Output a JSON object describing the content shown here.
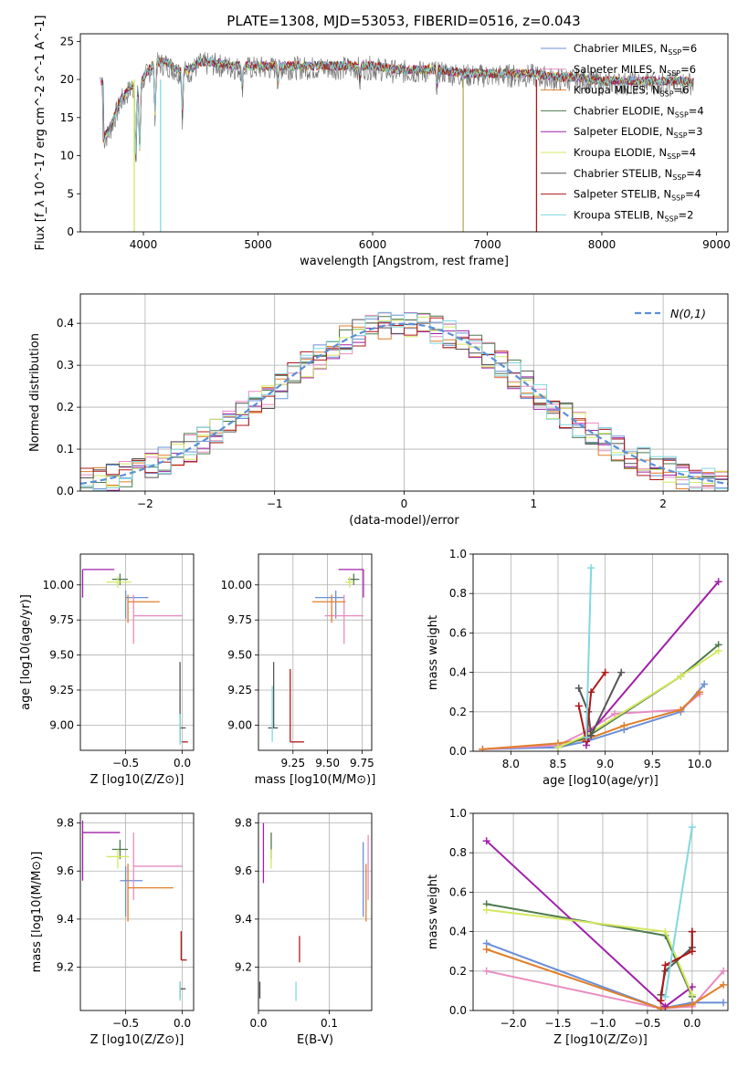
{
  "title": "PLATE=1308, MJD=53053, FIBERID=0516, z=0.043",
  "colors": {
    "Chabrier MILES": "#6a8fd8",
    "Salpeter MILES": "#e88cc0",
    "Kroupa MILES": "#e07f2a",
    "Chabrier ELODIE": "#4d7a4d",
    "Salpeter ELODIE": "#a020a8",
    "Kroupa ELODIE": "#d4e860",
    "Chabrier STELIB": "#555555",
    "Salpeter STELIB": "#b01818",
    "Kroupa STELIB": "#80d8e0"
  },
  "chart_data": [
    {
      "type": "line",
      "title": "PLATE=1308, MJD=53053, FIBERID=0516, z=0.043",
      "xlabel": "wavelength [Angstrom, rest frame]",
      "ylabel": "Flux [f_λ 10^-17 erg cm^-2 s^-1 A^-1]",
      "xlim": [
        3450,
        9100
      ],
      "ylim": [
        0,
        26
      ],
      "xticks": [
        4000,
        5000,
        6000,
        7000,
        8000,
        9000
      ],
      "yticks": [
        0,
        5,
        10,
        15,
        20,
        25
      ],
      "observed": {
        "color": "#777777",
        "x": [
          3650,
          3700,
          3750,
          3800,
          3850,
          3900,
          3950,
          4000,
          4050,
          4100,
          4200,
          4300,
          4400,
          4500,
          4600,
          4800,
          5000,
          5200,
          5400,
          5600,
          5800,
          6000,
          6200,
          6400,
          6600,
          6800,
          7000,
          7200,
          7400,
          7600,
          7800,
          8000,
          8200,
          8400,
          8600,
          8800
        ],
        "y": [
          12,
          13,
          15,
          17,
          18,
          19,
          18,
          20,
          21,
          22,
          22,
          21,
          21,
          22,
          22,
          21.5,
          21.5,
          21.5,
          21.5,
          21.5,
          21.5,
          21.5,
          21,
          21,
          21,
          20.5,
          20.5,
          20.5,
          20.5,
          20,
          20,
          19.5,
          19.5,
          19.5,
          19.5,
          19.5
        ]
      },
      "legend": [
        {
          "label": "Chabrier MILES, N",
          "sub": "SSP",
          "suffix": "=6"
        },
        {
          "label": "Salpeter MILES, N",
          "sub": "SSP",
          "suffix": "=6"
        },
        {
          "label": "Kroupa MILES, N",
          "sub": "SSP",
          "suffix": "=6"
        },
        {
          "label": "Chabrier ELODIE, N",
          "sub": "SSP",
          "suffix": "=4"
        },
        {
          "label": "Salpeter ELODIE, N",
          "sub": "SSP",
          "suffix": "=3"
        },
        {
          "label": "Kroupa ELODIE, N",
          "sub": "SSP",
          "suffix": "=4"
        },
        {
          "label": "Chabrier STELIB, N",
          "sub": "SSP",
          "suffix": "=4"
        },
        {
          "label": "Salpeter STELIB, N",
          "sub": "SSP",
          "suffix": "=4"
        },
        {
          "label": "Kroupa STELIB, N",
          "sub": "SSP",
          "suffix": "=2"
        }
      ],
      "legend_position": "upper right"
    },
    {
      "type": "histogram",
      "xlabel": "(data-model)/error",
      "ylabel": "Normed distribution",
      "xlim": [
        -2.5,
        2.5
      ],
      "ylim": [
        0,
        0.47
      ],
      "xticks": [
        -2,
        -1,
        0,
        1,
        2
      ],
      "yticks": [
        0.0,
        0.1,
        0.2,
        0.3,
        0.4
      ],
      "bins": [
        -2.5,
        -2.4,
        -2.3,
        -2.2,
        -2.1,
        -2.0,
        -1.9,
        -1.8,
        -1.7,
        -1.6,
        -1.5,
        -1.4,
        -1.3,
        -1.2,
        -1.1,
        -1.0,
        -0.9,
        -0.8,
        -0.7,
        -0.6,
        -0.5,
        -0.4,
        -0.3,
        -0.2,
        -0.1,
        0.0,
        0.1,
        0.2,
        0.3,
        0.4,
        0.5,
        0.6,
        0.7,
        0.8,
        0.9,
        1.0,
        1.1,
        1.2,
        1.3,
        1.4,
        1.5,
        1.6,
        1.7,
        1.8,
        1.9,
        2.0,
        2.1,
        2.2,
        2.3,
        2.4,
        2.5
      ],
      "reference": {
        "label": "N(0,1)",
        "color": "#5b8fd8",
        "style": "dashed"
      },
      "legend_position": "upper right"
    },
    {
      "type": "errorbar",
      "xlabel": "Z [log10(Z/Z⊙)]",
      "ylabel": "age [log10(age/yr)]",
      "xlim": [
        -0.9,
        0.1
      ],
      "ylim": [
        8.82,
        10.22
      ],
      "xticks": [
        -0.5,
        0.0
      ],
      "yticks": [
        9.0,
        9.25,
        9.5,
        9.75,
        10.0
      ],
      "points": [
        {
          "model": "Chabrier MILES",
          "x": -0.5,
          "y": 9.91,
          "xerr": [
            0.0,
            0.2
          ],
          "yerr": [
            0.15,
            0.05
          ]
        },
        {
          "model": "Salpeter MILES",
          "x": -0.43,
          "y": 9.78,
          "xerr": [
            0.0,
            0.43
          ],
          "yerr": [
            0.2,
            0.15
          ]
        },
        {
          "model": "Kroupa MILES",
          "x": -0.48,
          "y": 9.88,
          "xerr": [
            0.0,
            0.28
          ],
          "yerr": [
            0.15,
            0.05
          ]
        },
        {
          "model": "Chabrier ELODIE",
          "x": -0.55,
          "y": 10.04,
          "xerr": [
            0.07,
            0.07
          ],
          "yerr": [
            0.04,
            0.04
          ]
        },
        {
          "model": "Salpeter ELODIE",
          "x": -0.88,
          "y": 10.11,
          "xerr": [
            0.0,
            0.28
          ],
          "yerr": [
            0.2,
            0.0
          ]
        },
        {
          "model": "Kroupa ELODIE",
          "x": -0.57,
          "y": 10.02,
          "xerr": [
            0.1,
            0.12
          ],
          "yerr": [
            0.04,
            0.04
          ]
        },
        {
          "model": "Chabrier STELIB",
          "x": -0.02,
          "y": 8.98,
          "xerr": [
            0.0,
            0.05
          ],
          "yerr": [
            0.1,
            0.47
          ]
        },
        {
          "model": "Salpeter STELIB",
          "x": -0.01,
          "y": 8.88,
          "xerr": [
            0.0,
            0.06
          ],
          "yerr": [
            0.0,
            0.0
          ]
        },
        {
          "model": "Kroupa STELIB",
          "x": -0.02,
          "y": 8.88,
          "xerr": [
            0.0,
            0.02
          ],
          "yerr": [
            0.02,
            0.2
          ]
        }
      ]
    },
    {
      "type": "errorbar",
      "xlabel": "mass [log10(M/M⊙)]",
      "ylabel": "",
      "xlim": [
        9.0,
        9.82
      ],
      "ylim": [
        8.82,
        10.22
      ],
      "xticks": [
        9.25,
        9.5,
        9.75
      ],
      "yticks": [
        9.0,
        9.25,
        9.5,
        9.75,
        10.0
      ],
      "points": [
        {
          "model": "Chabrier MILES",
          "x": 9.56,
          "y": 9.91,
          "xerr": [
            0.15,
            0.06
          ],
          "yerr": [
            0.15,
            0.05
          ]
        },
        {
          "model": "Salpeter MILES",
          "x": 9.62,
          "y": 9.78,
          "xerr": [
            0.14,
            0.14
          ],
          "yerr": [
            0.2,
            0.15
          ]
        },
        {
          "model": "Kroupa MILES",
          "x": 9.53,
          "y": 9.88,
          "xerr": [
            0.14,
            0.1
          ],
          "yerr": [
            0.15,
            0.05
          ]
        },
        {
          "model": "Chabrier ELODIE",
          "x": 9.69,
          "y": 10.04,
          "xerr": [
            0.04,
            0.04
          ],
          "yerr": [
            0.04,
            0.04
          ]
        },
        {
          "model": "Salpeter ELODIE",
          "x": 9.76,
          "y": 10.11,
          "xerr": [
            0.18,
            0.0
          ],
          "yerr": [
            0.2,
            0.0
          ]
        },
        {
          "model": "Kroupa ELODIE",
          "x": 9.66,
          "y": 10.02,
          "xerr": [
            0.03,
            0.03
          ],
          "yerr": [
            0.04,
            0.04
          ]
        },
        {
          "model": "Chabrier STELIB",
          "x": 9.11,
          "y": 8.98,
          "xerr": [
            0.04,
            0.03
          ],
          "yerr": [
            0.0,
            0.47
          ]
        },
        {
          "model": "Salpeter STELIB",
          "x": 9.23,
          "y": 8.88,
          "xerr": [
            0.0,
            0.1
          ],
          "yerr": [
            0.0,
            0.52
          ]
        },
        {
          "model": "Kroupa STELIB",
          "x": 9.1,
          "y": 8.88,
          "xerr": [
            0.0,
            0.0
          ],
          "yerr": [
            0.0,
            0.4
          ]
        }
      ]
    },
    {
      "type": "line",
      "xlabel": "age [log10(age/yr)]",
      "ylabel": "mass weight",
      "xlim": [
        7.6,
        10.3
      ],
      "ylim": [
        0.0,
        1.0
      ],
      "xticks": [
        8.0,
        8.5,
        9.0,
        9.5,
        10.0
      ],
      "yticks": [
        0.0,
        0.2,
        0.4,
        0.6,
        0.8,
        1.0
      ],
      "series": [
        {
          "model": "Chabrier MILES",
          "x": [
            7.7,
            8.5,
            8.8,
            9.2,
            9.8,
            10.05
          ],
          "y": [
            0.01,
            0.02,
            0.05,
            0.11,
            0.2,
            0.34
          ]
        },
        {
          "model": "Salpeter MILES",
          "x": [
            7.7,
            8.5,
            8.8,
            9.1,
            9.8,
            10.0
          ],
          "y": [
            0.01,
            0.03,
            0.1,
            0.19,
            0.21,
            0.29
          ]
        },
        {
          "model": "Kroupa MILES",
          "x": [
            7.7,
            8.5,
            8.8,
            9.2,
            9.8,
            10.0
          ],
          "y": [
            0.01,
            0.04,
            0.06,
            0.13,
            0.21,
            0.3
          ]
        },
        {
          "model": "Chabrier ELODIE",
          "x": [
            8.5,
            8.8,
            9.8,
            10.2
          ],
          "y": [
            0.02,
            0.07,
            0.38,
            0.54
          ]
        },
        {
          "model": "Salpeter ELODIE",
          "x": [
            8.8,
            8.85,
            10.2
          ],
          "y": [
            0.03,
            0.1,
            0.86
          ]
        },
        {
          "model": "Kroupa ELODIE",
          "x": [
            8.5,
            8.8,
            9.8,
            10.2
          ],
          "y": [
            0.02,
            0.08,
            0.38,
            0.51
          ]
        },
        {
          "model": "Chabrier STELIB",
          "x": [
            8.72,
            8.82,
            8.85,
            9.17
          ],
          "y": [
            0.32,
            0.2,
            0.08,
            0.4
          ]
        },
        {
          "model": "Salpeter STELIB",
          "x": [
            8.72,
            8.8,
            8.85,
            9.0
          ],
          "y": [
            0.23,
            0.05,
            0.3,
            0.4
          ]
        },
        {
          "model": "Kroupa STELIB",
          "x": [
            8.8,
            8.85
          ],
          "y": [
            0.07,
            0.93
          ]
        }
      ]
    },
    {
      "type": "errorbar",
      "xlabel": "Z [log10(Z/Z⊙)]",
      "ylabel": "mass [log10(M/M⊙)]",
      "xlim": [
        -0.9,
        0.1
      ],
      "ylim": [
        9.02,
        9.84
      ],
      "xticks": [
        -0.5,
        0.0
      ],
      "yticks": [
        9.2,
        9.4,
        9.6,
        9.8
      ],
      "points": [
        {
          "model": "Chabrier MILES",
          "x": -0.5,
          "y": 9.56,
          "xerr": [
            0.05,
            0.15
          ],
          "yerr": [
            0.15,
            0.06
          ]
        },
        {
          "model": "Salpeter MILES",
          "x": -0.43,
          "y": 9.62,
          "xerr": [
            0.0,
            0.43
          ],
          "yerr": [
            0.14,
            0.14
          ]
        },
        {
          "model": "Kroupa MILES",
          "x": -0.48,
          "y": 9.53,
          "xerr": [
            0.0,
            0.4
          ],
          "yerr": [
            0.14,
            0.1
          ]
        },
        {
          "model": "Chabrier ELODIE",
          "x": -0.55,
          "y": 9.69,
          "xerr": [
            0.07,
            0.07
          ],
          "yerr": [
            0.04,
            0.04
          ]
        },
        {
          "model": "Salpeter ELODIE",
          "x": -0.88,
          "y": 9.76,
          "xerr": [
            0.0,
            0.33
          ],
          "yerr": [
            0.2,
            0.05
          ]
        },
        {
          "model": "Kroupa ELODIE",
          "x": -0.57,
          "y": 9.66,
          "xerr": [
            0.1,
            0.1
          ],
          "yerr": [
            0.05,
            0.03
          ]
        },
        {
          "model": "Chabrier STELIB",
          "x": -0.02,
          "y": 9.11,
          "xerr": [
            0.0,
            0.05
          ],
          "yerr": [
            0.04,
            0.03
          ]
        },
        {
          "model": "Salpeter STELIB",
          "x": -0.01,
          "y": 9.23,
          "xerr": [
            0.0,
            0.05
          ],
          "yerr": [
            0.0,
            0.12
          ]
        },
        {
          "model": "Kroupa STELIB",
          "x": -0.02,
          "y": 9.1,
          "xerr": [
            0.0,
            0.0
          ],
          "yerr": [
            0.04,
            0.04
          ]
        }
      ]
    },
    {
      "type": "errorbar",
      "xlabel": "E(B-V)",
      "ylabel": "",
      "xlim": [
        0.0,
        0.16
      ],
      "ylim": [
        9.02,
        9.84
      ],
      "xticks": [
        0.0,
        0.1
      ],
      "yticks": [
        9.2,
        9.4,
        9.6,
        9.8
      ],
      "points": [
        {
          "model": "Chabrier MILES",
          "x": 0.148,
          "y": 9.56,
          "xerr": [
            0,
            0
          ],
          "yerr": [
            0.15,
            0.16
          ]
        },
        {
          "model": "Salpeter MILES",
          "x": 0.155,
          "y": 9.62,
          "xerr": [
            0,
            0
          ],
          "yerr": [
            0.14,
            0.13
          ]
        },
        {
          "model": "Kroupa MILES",
          "x": 0.152,
          "y": 9.53,
          "xerr": [
            0,
            0
          ],
          "yerr": [
            0.14,
            0.1
          ]
        },
        {
          "model": "Chabrier ELODIE",
          "x": 0.018,
          "y": 9.69,
          "xerr": [
            0,
            0
          ],
          "yerr": [
            0.04,
            0.07
          ]
        },
        {
          "model": "Salpeter ELODIE",
          "x": 0.007,
          "y": 9.7,
          "xerr": [
            0,
            0
          ],
          "yerr": [
            0.15,
            0.1
          ]
        },
        {
          "model": "Kroupa ELODIE",
          "x": 0.018,
          "y": 9.66,
          "xerr": [
            0,
            0
          ],
          "yerr": [
            0.05,
            0.03
          ]
        },
        {
          "model": "Chabrier STELIB",
          "x": 0.002,
          "y": 9.11,
          "xerr": [
            0,
            0
          ],
          "yerr": [
            0.04,
            0.03
          ]
        },
        {
          "model": "Salpeter STELIB",
          "x": 0.058,
          "y": 9.27,
          "xerr": [
            0,
            0
          ],
          "yerr": [
            0.05,
            0.06
          ]
        },
        {
          "model": "Kroupa STELIB",
          "x": 0.053,
          "y": 9.1,
          "xerr": [
            0,
            0
          ],
          "yerr": [
            0.04,
            0.04
          ]
        }
      ]
    },
    {
      "type": "line",
      "xlabel": "Z [log10(Z/Z⊙)]",
      "ylabel": "mass weight",
      "xlim": [
        -2.45,
        0.4
      ],
      "ylim": [
        0.0,
        1.0
      ],
      "xticks": [
        -2.0,
        -1.5,
        -1.0,
        -0.5,
        0.0
      ],
      "yticks": [
        0.0,
        0.2,
        0.4,
        0.6,
        0.8,
        1.0
      ],
      "series": [
        {
          "model": "Chabrier MILES",
          "x": [
            -2.3,
            -0.35,
            0.0,
            0.35
          ],
          "y": [
            0.34,
            0.01,
            0.04,
            0.04
          ]
        },
        {
          "model": "Salpeter MILES",
          "x": [
            -2.3,
            -0.35,
            0.0,
            0.35
          ],
          "y": [
            0.2,
            0.01,
            0.02,
            0.2
          ]
        },
        {
          "model": "Kroupa MILES",
          "x": [
            -2.3,
            -0.35,
            0.0,
            0.35
          ],
          "y": [
            0.31,
            0.01,
            0.03,
            0.13
          ]
        },
        {
          "model": "Chabrier ELODIE",
          "x": [
            -2.3,
            -0.3,
            0.0
          ],
          "y": [
            0.54,
            0.38,
            0.07
          ]
        },
        {
          "model": "Salpeter ELODIE",
          "x": [
            -2.3,
            -0.3,
            0.0
          ],
          "y": [
            0.86,
            0.02,
            0.12
          ]
        },
        {
          "model": "Kroupa ELODIE",
          "x": [
            -2.3,
            -0.3,
            0.0
          ],
          "y": [
            0.51,
            0.4,
            0.08
          ]
        },
        {
          "model": "Chabrier STELIB",
          "x": [
            -0.35,
            -0.3,
            0.0,
            0.0
          ],
          "y": [
            0.08,
            0.2,
            0.32,
            0.4
          ]
        },
        {
          "model": "Salpeter STELIB",
          "x": [
            -0.35,
            -0.3,
            0.0,
            0.0
          ],
          "y": [
            0.05,
            0.23,
            0.3,
            0.4
          ]
        },
        {
          "model": "Kroupa STELIB",
          "x": [
            -0.3,
            0.0
          ],
          "y": [
            0.07,
            0.93
          ]
        }
      ]
    }
  ]
}
